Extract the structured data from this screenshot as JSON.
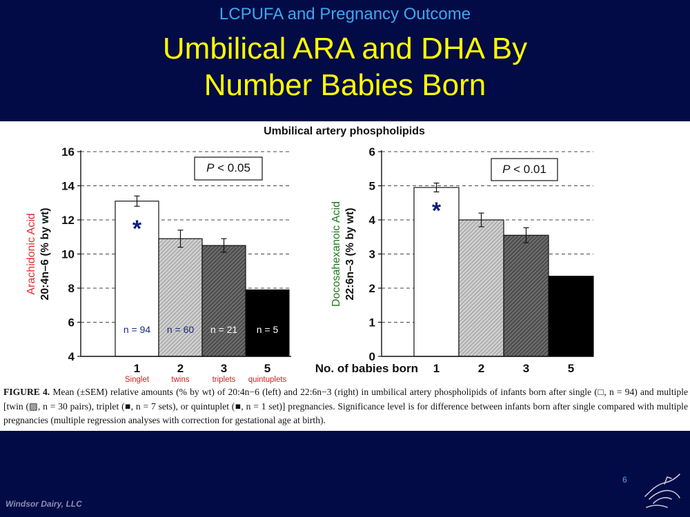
{
  "slide": {
    "kicker": "LCPUFA and Pregnancy Outcome",
    "title_line1": "Umbilical ARA and DHA By",
    "title_line2": "Number Babies Born",
    "slide_number": "6",
    "footer": "Windsor Dairy, LLC",
    "logo_icon": "bird-logo-icon"
  },
  "figure": {
    "caption_label": "FIGURE 4.",
    "caption_text": "Mean (±SEM) relative amounts (% by wt) of 20:4n−6 (left) and 22:6n−3 (right) in umbilical artery phospholipids of infants born after single (□, n = 94) and multiple [twin (▨, n = 30 pairs), triplet (■, n = 7 sets), or quintuplet (■, n = 1 set)] pregnancies. Significance level is for difference between infants born after single compared with multiple pregnancies (multiple regression analyses with correction for gestational age at birth)."
  },
  "chart_data": [
    {
      "type": "bar",
      "title": "Umbilical artery phospholipids",
      "ylabel_line1": "Arachidonic Acid",
      "ylabel_line2": "20:4n–6 (% by wt)",
      "ylabel_colors": [
        "#e03030",
        "#111111"
      ],
      "categories": [
        "1",
        "2",
        "3",
        "5"
      ],
      "category_sublabels": [
        "Singlet",
        "twins",
        "triplets",
        "quintuplets"
      ],
      "values": [
        13.1,
        10.9,
        10.5,
        7.9
      ],
      "errors": [
        0.3,
        0.5,
        0.4,
        0
      ],
      "n_labels": [
        "n = 94",
        "n = 60",
        "n = 21",
        "n = 5"
      ],
      "bar_styles": [
        "white",
        "lightgray",
        "darkgray",
        "black"
      ],
      "ylim": [
        4,
        16
      ],
      "yticks": [
        4,
        6,
        8,
        10,
        12,
        14,
        16
      ],
      "grid": true,
      "annotation": "P < 0.05",
      "annotation_prefix": "P",
      "annotation_rest": " < 0.05",
      "significance_marker": "*"
    },
    {
      "type": "bar",
      "ylabel_line1": "Docosahexanoic Acid",
      "ylabel_line2": "22:6n–3 (% by wt)",
      "ylabel_colors": [
        "#1f7a1f",
        "#111111"
      ],
      "xlabel": "No. of babies born",
      "categories": [
        "1",
        "2",
        "3",
        "5"
      ],
      "values": [
        4.95,
        4.0,
        3.55,
        2.35
      ],
      "errors": [
        0.13,
        0.2,
        0.22,
        0
      ],
      "bar_styles": [
        "white",
        "lightgray",
        "darkgray",
        "black"
      ],
      "ylim": [
        0,
        6
      ],
      "yticks": [
        0,
        1,
        2,
        3,
        4,
        5,
        6
      ],
      "grid": true,
      "annotation": "P < 0.01",
      "annotation_prefix": "P",
      "annotation_rest": " < 0.01",
      "significance_marker": "*"
    }
  ]
}
